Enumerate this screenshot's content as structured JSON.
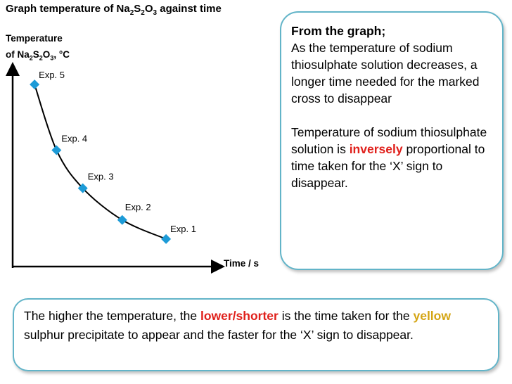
{
  "title": {
    "prefix": "Graph temperature of Na",
    "sub1": "2",
    "mid1": "S",
    "sub2": "2",
    "mid2": "O",
    "sub3": "3",
    "suffix": " against time"
  },
  "ylabel": {
    "line1": "Temperature",
    "prefix": "of Na",
    "sub1": "2",
    "mid1": "S",
    "sub2": "2",
    "mid2": "O",
    "sub3": "3",
    "suffix": ", °C"
  },
  "xlabel": "Time / s",
  "chart_data": {
    "type": "scatter",
    "xlabel": "Time / s",
    "ylabel": "Temperature of Na2S2O3, °C",
    "title": "Graph temperature of Na2S2O3 against time",
    "marker_color": "#1d9bd7",
    "points": [
      {
        "label": "Exp. 5",
        "x": 1.0,
        "y": 8.6
      },
      {
        "label": "Exp. 4",
        "x": 2.0,
        "y": 5.5
      },
      {
        "label": "Exp. 3",
        "x": 3.2,
        "y": 3.7
      },
      {
        "label": "Exp. 2",
        "x": 5.0,
        "y": 2.2
      },
      {
        "label": "Exp. 1",
        "x": 7.0,
        "y": 1.3
      }
    ],
    "xlim": [
      0,
      9.5
    ],
    "ylim": [
      0,
      10
    ],
    "trend": "inverse curve through points"
  },
  "side_panel": {
    "heading": "From the graph;",
    "para1": "As the temperature of sodium thiosulphate solution decreases, a longer time needed for the marked cross to disappear",
    "para2_start": "Temperature of sodium thiosulphate solution is ",
    "para2_highlight": "inversely",
    "para2_end": " proportional to time taken for the ‘X’ sign to disappear."
  },
  "bottom_panel": {
    "part1": "The higher the temperature, the ",
    "highlight1": "lower/shorter",
    "part2": " is the time taken for the ",
    "highlight2": "yellow",
    "part3": " sulphur precipitate to appear and the faster for the ‘X’ sign to disappear."
  },
  "colors": {
    "accent_border": "#62b4c8",
    "highlight_red": "#e0201b",
    "highlight_yellow": "#d4a514",
    "marker": "#1d9bd7"
  }
}
